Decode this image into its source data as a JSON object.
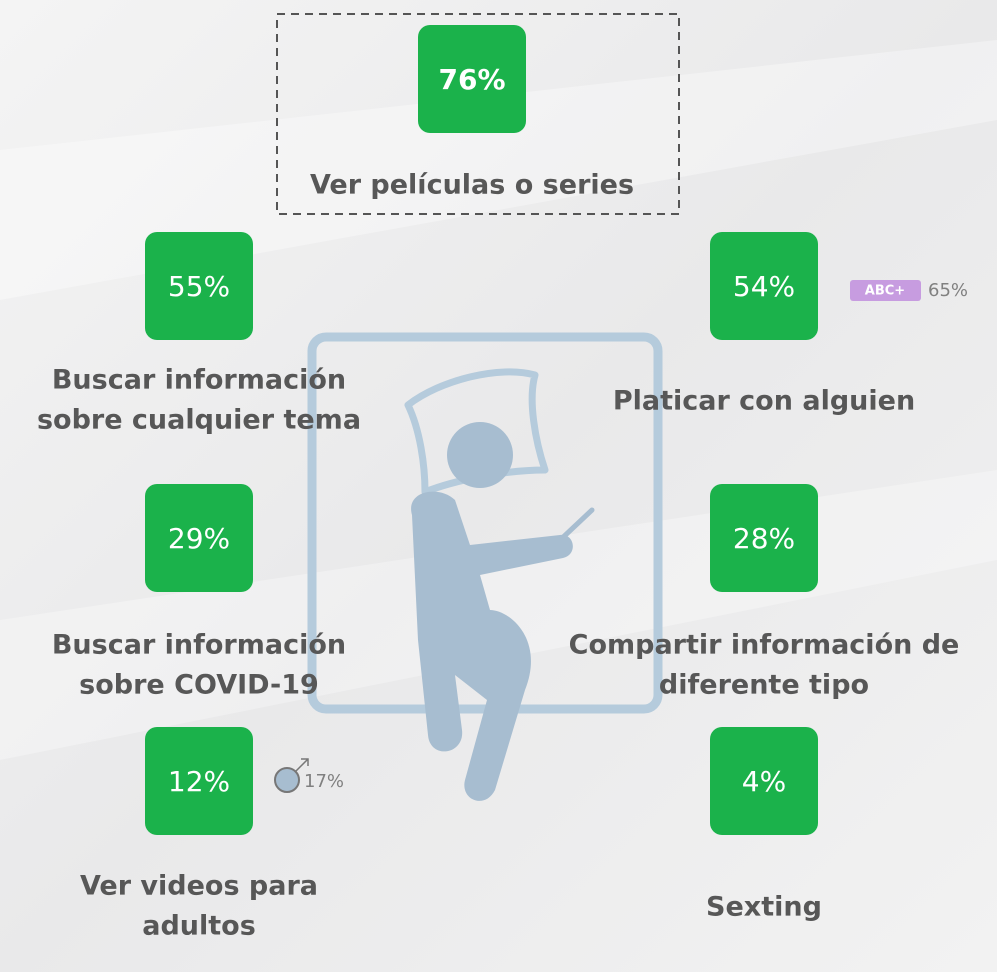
{
  "items": [
    {
      "value": "76%",
      "label": [
        "Ver películas o series"
      ]
    },
    {
      "value": "55%",
      "label": [
        "Buscar información",
        "sobre cualquier tema"
      ]
    },
    {
      "value": "54%",
      "label": [
        "Platicar con alguien"
      ],
      "badge": {
        "tag": "ABC+",
        "value": "65%"
      }
    },
    {
      "value": "29%",
      "label": [
        "Buscar información",
        "sobre COVID-19"
      ]
    },
    {
      "value": "28%",
      "label": [
        "Compartir información de",
        "diferente tipo"
      ]
    },
    {
      "value": "12%",
      "label": [
        "Ver videos para",
        "adultos"
      ],
      "badge": {
        "value": "17%"
      }
    },
    {
      "value": "4%",
      "label": [
        "Sexting"
      ]
    }
  ]
}
